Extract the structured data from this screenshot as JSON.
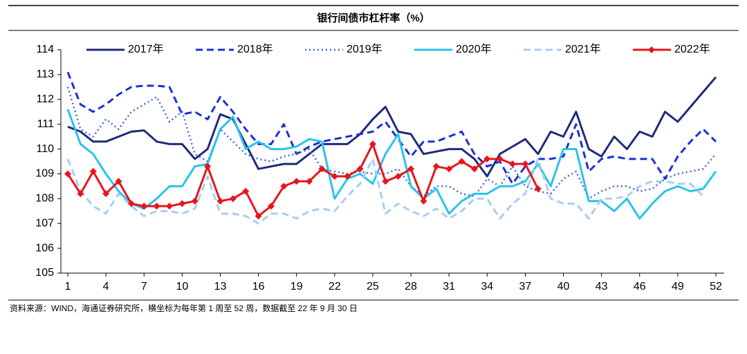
{
  "chart_data": {
    "type": "line",
    "title": "银行间债市杠杆率（%）",
    "note": "资料来源：WIND，海通证券研究所，横坐标为每年第 1 周至 52 周，数据截至 22 年 9 月 30 日",
    "x": [
      1,
      2,
      3,
      4,
      5,
      6,
      7,
      8,
      9,
      10,
      11,
      12,
      13,
      14,
      15,
      16,
      17,
      18,
      19,
      20,
      21,
      22,
      23,
      24,
      25,
      26,
      27,
      28,
      29,
      30,
      31,
      32,
      33,
      34,
      35,
      36,
      37,
      38,
      39,
      40,
      41,
      42,
      43,
      44,
      45,
      46,
      47,
      48,
      49,
      50,
      51,
      52
    ],
    "xlim": [
      1,
      52
    ],
    "xticks": [
      1,
      4,
      7,
      10,
      13,
      16,
      19,
      22,
      25,
      28,
      31,
      34,
      37,
      40,
      43,
      46,
      49,
      52
    ],
    "ylim": [
      105,
      114
    ],
    "yticks": [
      105,
      106,
      107,
      108,
      109,
      110,
      111,
      112,
      113,
      114
    ],
    "grid": false,
    "legend": "top",
    "series": [
      {
        "name": "2017年",
        "color": "#1f2a7a",
        "style": "solid",
        "values": [
          110.9,
          110.7,
          110.3,
          110.3,
          110.5,
          110.7,
          110.75,
          110.3,
          110.2,
          110.2,
          109.6,
          110.0,
          111.4,
          111.2,
          110.2,
          109.2,
          109.3,
          109.4,
          109.4,
          109.8,
          110.2,
          110.2,
          110.2,
          110.6,
          111.2,
          111.7,
          110.7,
          110.6,
          109.8,
          109.9,
          110.0,
          110.0,
          109.6,
          108.9,
          109.8,
          110.1,
          110.4,
          109.8,
          110.7,
          110.5,
          111.5,
          110.0,
          109.7,
          110.5,
          110.0,
          110.7,
          110.5,
          111.5,
          111.1,
          111.7,
          112.3,
          112.9
        ]
      },
      {
        "name": "2018年",
        "color": "#1a2fd6",
        "style": "dashed",
        "values": [
          113.1,
          111.8,
          111.5,
          111.8,
          112.2,
          112.5,
          112.55,
          112.55,
          112.5,
          111.4,
          111.5,
          111.2,
          112.1,
          111.5,
          110.8,
          110.2,
          110.2,
          111.0,
          109.8,
          110.1,
          110.3,
          110.4,
          110.5,
          110.6,
          110.7,
          111.1,
          110.4,
          109.7,
          110.3,
          110.3,
          110.5,
          110.7,
          109.8,
          109.3,
          109.5,
          108.6,
          109.3,
          109.6,
          109.6,
          109.7,
          111.0,
          109.1,
          109.6,
          109.7,
          109.6,
          109.6,
          109.6,
          108.8,
          109.7,
          110.3,
          110.8,
          110.3
        ]
      },
      {
        "name": "2019年",
        "color": "#3b63e0",
        "style": "dotted",
        "values": [
          112.5,
          110.8,
          110.5,
          111.2,
          110.8,
          111.5,
          111.8,
          112.1,
          111.1,
          111.5,
          109.8,
          109.5,
          110.8,
          110.3,
          109.8,
          109.6,
          109.5,
          109.7,
          109.8,
          110.0,
          109.2,
          109.1,
          109.0,
          109.1,
          109.0,
          109.0,
          109.2,
          108.5,
          108.1,
          108.5,
          108.5,
          108.2,
          108.1,
          108.8,
          108.5,
          109.3,
          108.5,
          108.3,
          108.2,
          108.8,
          109.1,
          108.0,
          108.3,
          108.5,
          108.5,
          108.3,
          108.4,
          108.8,
          109.0,
          109.1,
          109.2,
          109.8
        ]
      },
      {
        "name": "2020年",
        "color": "#29c3ea",
        "style": "solid",
        "values": [
          111.6,
          110.2,
          109.8,
          109.0,
          108.3,
          107.8,
          107.6,
          108.0,
          108.5,
          108.5,
          109.3,
          109.4,
          110.8,
          111.3,
          110.0,
          110.3,
          110.0,
          110.0,
          110.1,
          110.4,
          110.3,
          108.0,
          108.8,
          109.0,
          108.6,
          109.8,
          110.6,
          108.5,
          108.0,
          108.4,
          107.4,
          107.9,
          108.2,
          108.2,
          108.5,
          108.5,
          108.7,
          109.4,
          108.5,
          110.0,
          110.0,
          107.9,
          107.9,
          107.5,
          108.0,
          107.2,
          107.8,
          108.3,
          108.5,
          108.3,
          108.4,
          109.1
        ]
      },
      {
        "name": "2021年",
        "color": "#a9cdf2",
        "style": "dashed",
        "values": [
          109.6,
          108.3,
          107.7,
          107.4,
          108.2,
          107.7,
          107.3,
          107.5,
          107.5,
          107.4,
          107.6,
          108.9,
          107.4,
          107.4,
          107.3,
          107.0,
          107.4,
          107.4,
          107.2,
          107.5,
          107.6,
          107.5,
          108.1,
          108.6,
          109.6,
          107.4,
          107.8,
          107.5,
          107.3,
          107.6,
          107.2,
          107.5,
          108.0,
          108.0,
          107.2,
          107.8,
          108.2,
          109.6,
          108.0,
          107.8,
          107.8,
          107.2,
          108.0,
          108.0,
          108.1,
          108.5,
          108.7,
          108.7,
          108.6,
          108.6,
          108.1,
          null
        ]
      },
      {
        "name": "2022年",
        "color": "#e8141c",
        "style": "solid",
        "marker": "diamond",
        "values": [
          109.0,
          108.2,
          109.1,
          108.2,
          108.7,
          107.8,
          107.7,
          107.7,
          107.7,
          107.8,
          107.9,
          109.3,
          107.9,
          108.0,
          108.3,
          107.3,
          107.7,
          108.5,
          108.7,
          108.7,
          109.2,
          108.9,
          108.9,
          109.2,
          110.2,
          108.7,
          108.9,
          109.2,
          107.9,
          109.3,
          109.2,
          109.5,
          109.2,
          109.6,
          109.6,
          109.4,
          109.4,
          108.4,
          null,
          null,
          null,
          null,
          null,
          null,
          null,
          null,
          null,
          null,
          null,
          null,
          null,
          null
        ]
      }
    ]
  }
}
